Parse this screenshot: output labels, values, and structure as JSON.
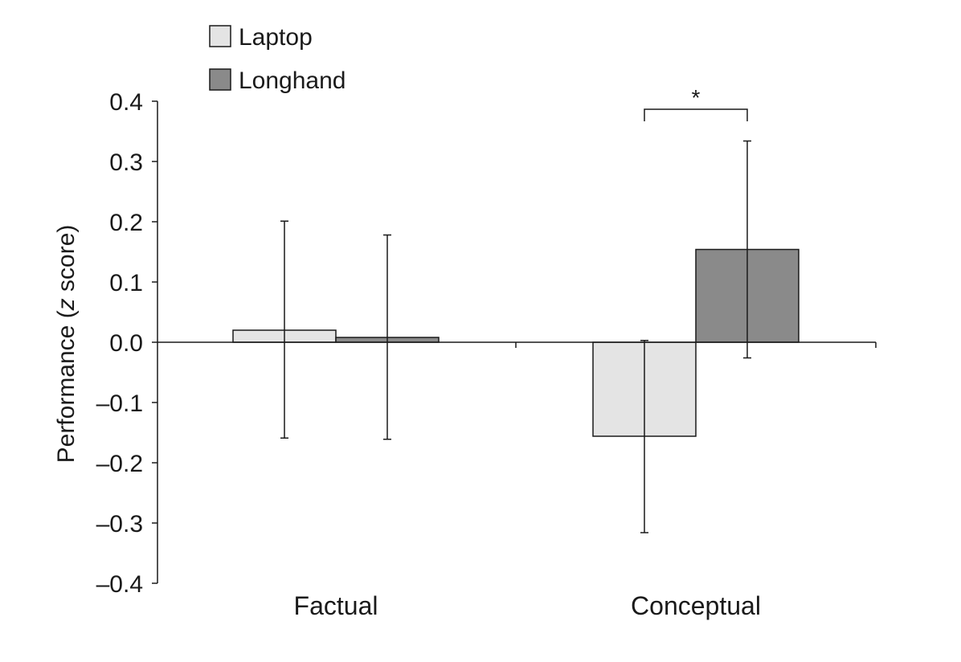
{
  "chart_data": {
    "type": "bar",
    "categories": [
      "Factual",
      "Conceptual"
    ],
    "series": [
      {
        "name": "Laptop",
        "color": "#e4e4e4",
        "values": [
          0.02,
          -0.156
        ],
        "error_low": [
          -0.159,
          -0.316
        ],
        "error_high": [
          0.201,
          0.003
        ]
      },
      {
        "name": "Longhand",
        "color": "#8a8a8a",
        "values": [
          0.008,
          0.154
        ],
        "error_low": [
          -0.161,
          -0.026
        ],
        "error_high": [
          0.178,
          0.334
        ]
      }
    ],
    "ylabel_prefix": "Performance (",
    "ylabel_italic": "z",
    "ylabel_suffix": " score)",
    "ylim": [
      -0.4,
      0.4
    ],
    "yticks": [
      "0.4",
      "0.3",
      "0.2",
      "0.1",
      "0.0",
      "–0.1",
      "–0.2",
      "–0.3",
      "–0.4"
    ],
    "ytick_values": [
      0.4,
      0.3,
      0.2,
      0.1,
      0.0,
      -0.1,
      -0.2,
      -0.3,
      -0.4
    ],
    "legend_position": "top-left",
    "significance": {
      "category": "Conceptual",
      "label": "*"
    },
    "grid": false
  }
}
